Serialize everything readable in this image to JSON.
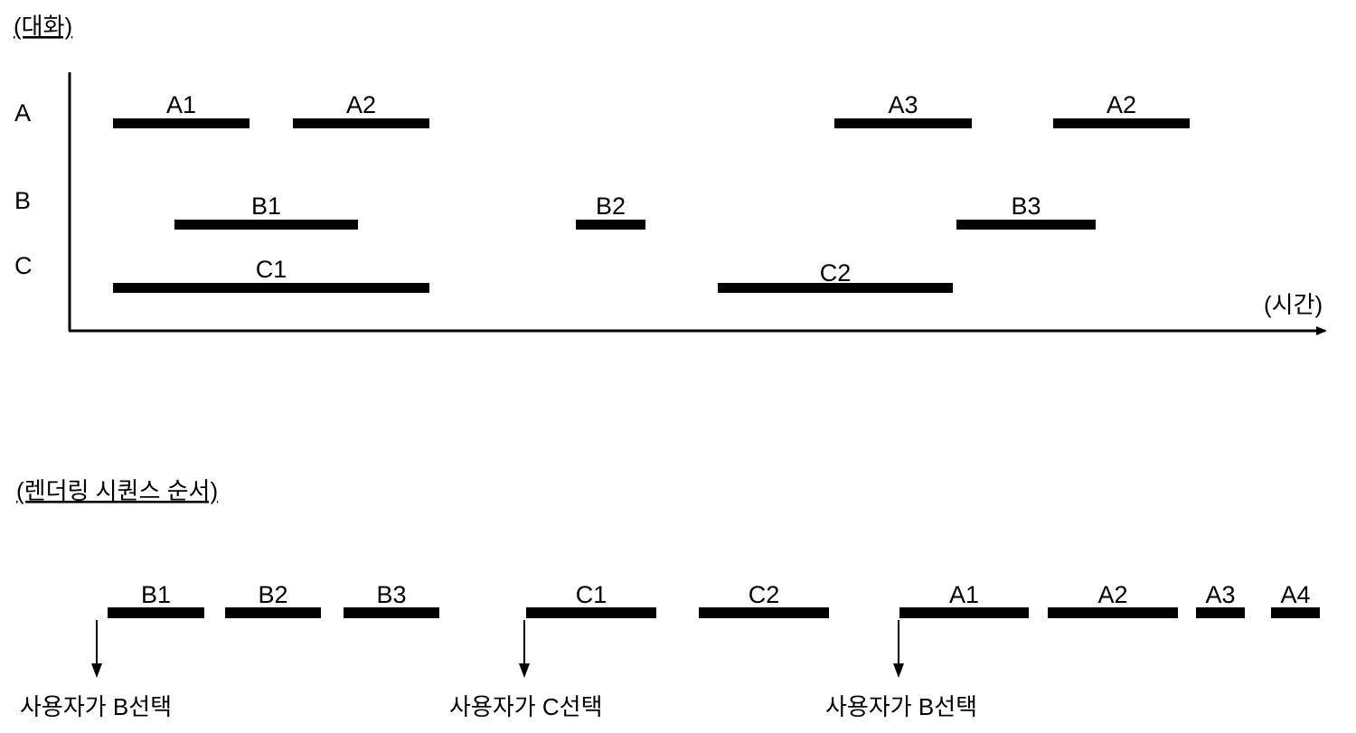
{
  "top": {
    "title": "(대화)",
    "time_label": "(시간)",
    "rows": [
      {
        "name": "A",
        "segments": [
          "A1",
          "A2",
          "A3",
          "A2"
        ]
      },
      {
        "name": "B",
        "segments": [
          "B1",
          "B2",
          "B3"
        ]
      },
      {
        "name": "C",
        "segments": [
          "C1",
          "C2"
        ]
      }
    ]
  },
  "bottom": {
    "title": "(렌더링 시퀀스 순서)",
    "sequence": [
      "B1",
      "B2",
      "B3",
      "C1",
      "C2",
      "A1",
      "A2",
      "A3",
      "A4"
    ],
    "events": [
      "사용자가 B선택",
      "사용자가 C선택",
      "사용자가 B선택"
    ]
  }
}
